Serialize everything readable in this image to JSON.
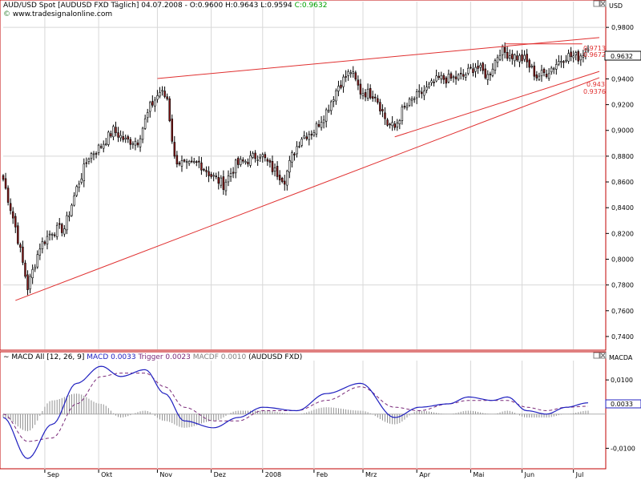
{
  "price_panel": {
    "header": "AUD/USD Spot [AUDUSD FXD  Täglich] 04.07.2008 - O:0.9600 H:0.9643 L:0.9594",
    "close_text": "C:0.9632",
    "source": "www.tradesignalonline.com",
    "currency": "USD",
    "last_price_label": "0.9632",
    "trendline_labels": [
      "0.9713",
      "0.9672",
      "0.943",
      "0.9376"
    ]
  },
  "macd_panel": {
    "header_prefix": "MACD All [12, 26, 9]",
    "macd_text": "MACD 0.0033",
    "trigger_text": "Trigger 0.0023",
    "macdf_text": "MACDF 0.0010",
    "suffix": "(AUDUSD FXD)",
    "axis_title": "MACDA",
    "current_label": "0.0033"
  },
  "colors": {
    "up_candle": "#ffffff",
    "down_candle": "#8b1a1a",
    "trendline": "#e03030",
    "macd": "#2020c0",
    "trigger": "#7a2a7a",
    "histogram": "#909090",
    "close_text": "#00a000"
  },
  "chart_data": [
    {
      "type": "candlestick",
      "title": "AUD/USD Spot",
      "ylabel": "USD",
      "ylim": [
        0.73,
        1.0
      ],
      "y_ticks": [
        "0,9800",
        "0,9600",
        "0,9400",
        "0,9200",
        "0,9000",
        "0,8800",
        "0,8600",
        "0,8400",
        "0,8200",
        "0,8000",
        "0,7800",
        "0,7600",
        "0,7400"
      ],
      "y_tick_values": [
        0.98,
        0.96,
        0.94,
        0.92,
        0.9,
        0.88,
        0.86,
        0.84,
        0.82,
        0.8,
        0.78,
        0.76,
        0.74
      ],
      "x_labels": [
        "Sep",
        "Okt",
        "Nov",
        "Dez",
        "2008",
        "Feb",
        "Mrz",
        "Apr",
        "Mai",
        "Jun",
        "Jul"
      ],
      "x_label_index": [
        17,
        39,
        63,
        85,
        106,
        127,
        147,
        169,
        191,
        212,
        233
      ],
      "n_bars": 240,
      "close_anchor_index": [
        0,
        5,
        10,
        15,
        20,
        25,
        30,
        35,
        40,
        45,
        50,
        55,
        60,
        64,
        67,
        70,
        75,
        80,
        85,
        90,
        95,
        100,
        105,
        110,
        115,
        118,
        122,
        127,
        132,
        137,
        142,
        146,
        152,
        157,
        160,
        163,
        168,
        173,
        178,
        183,
        188,
        193,
        198,
        203,
        208,
        213,
        218,
        222,
        226,
        230,
        235,
        239
      ],
      "close_anchor_value": [
        0.862,
        0.825,
        0.778,
        0.81,
        0.822,
        0.824,
        0.855,
        0.88,
        0.888,
        0.9,
        0.892,
        0.892,
        0.918,
        0.93,
        0.925,
        0.878,
        0.872,
        0.875,
        0.865,
        0.858,
        0.873,
        0.877,
        0.882,
        0.87,
        0.862,
        0.88,
        0.895,
        0.9,
        0.915,
        0.935,
        0.946,
        0.93,
        0.928,
        0.905,
        0.902,
        0.915,
        0.925,
        0.932,
        0.94,
        0.94,
        0.942,
        0.95,
        0.942,
        0.962,
        0.958,
        0.955,
        0.942,
        0.945,
        0.952,
        0.958,
        0.957,
        0.9632
      ],
      "trendlines": [
        {
          "x": [
            63,
            239
          ],
          "y": [
            0.9403,
            0.9713
          ]
        },
        {
          "x": [
            5,
            239
          ],
          "y": [
            0.768,
            0.9376
          ]
        },
        {
          "x": [
            160,
            239
          ],
          "y": [
            0.895,
            0.943
          ]
        },
        {
          "x": [
            205,
            232
          ],
          "y": [
            0.9672,
            0.9672
          ]
        }
      ]
    },
    {
      "type": "line",
      "title": "MACD All [12, 26, 9]",
      "ylabel": "MACDA",
      "ylim": [
        -0.016,
        0.018
      ],
      "y_ticks": [
        "0,0100",
        "-0,0100"
      ],
      "y_tick_values": [
        0.01,
        -0.01
      ],
      "series": [
        {
          "name": "MACD",
          "x": [
            0,
            10,
            20,
            30,
            40,
            48,
            58,
            66,
            74,
            86,
            96,
            106,
            120,
            132,
            146,
            160,
            170,
            182,
            190,
            200,
            206,
            214,
            222,
            230,
            239
          ],
          "values": [
            -0.001,
            -0.013,
            -0.003,
            0.009,
            0.014,
            0.011,
            0.013,
            0.006,
            -0.002,
            -0.004,
            -0.001,
            0.002,
            0.001,
            0.006,
            0.009,
            -0.001,
            0.002,
            0.003,
            0.005,
            0.004,
            0.005,
            0.001,
            0.0,
            0.002,
            0.0033
          ]
        },
        {
          "name": "Trigger",
          "x": [
            0,
            10,
            20,
            30,
            40,
            48,
            58,
            66,
            74,
            86,
            96,
            106,
            120,
            132,
            146,
            160,
            170,
            182,
            190,
            200,
            206,
            214,
            222,
            230,
            239
          ],
          "values": [
            0.0,
            -0.008,
            -0.007,
            0.003,
            0.011,
            0.012,
            0.012,
            0.008,
            0.002,
            -0.002,
            -0.002,
            0.001,
            0.001,
            0.004,
            0.008,
            0.002,
            0.001,
            0.003,
            0.004,
            0.004,
            0.004,
            0.002,
            0.001,
            0.002,
            0.0023
          ]
        },
        {
          "name": "MACDF",
          "type": "bar"
        }
      ]
    }
  ]
}
